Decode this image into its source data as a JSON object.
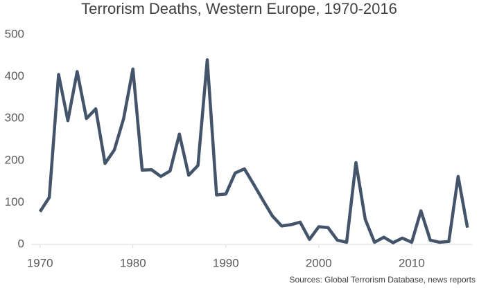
{
  "chart_data": {
    "type": "line",
    "title": "Terrorism Deaths, Western Europe, 1970-2016",
    "source": "Sources: Global Terrorism Database, news reports",
    "x": [
      1970,
      1971,
      1972,
      1973,
      1974,
      1975,
      1976,
      1977,
      1978,
      1979,
      1980,
      1981,
      1982,
      1983,
      1984,
      1985,
      1986,
      1987,
      1988,
      1989,
      1990,
      1991,
      1992,
      1993,
      1994,
      1995,
      1996,
      1997,
      1998,
      1999,
      2000,
      2001,
      2002,
      2003,
      2004,
      2005,
      2006,
      2007,
      2008,
      2009,
      2010,
      2011,
      2012,
      2013,
      2014,
      2015,
      2016
    ],
    "series": [
      {
        "name": "Deaths",
        "color": "#44546a",
        "values": [
          78,
          112,
          405,
          295,
          412,
          300,
          323,
          193,
          225,
          300,
          418,
          177,
          178,
          162,
          175,
          263,
          165,
          188,
          440,
          118,
          120,
          170,
          180,
          143,
          105,
          68,
          44,
          47,
          53,
          12,
          42,
          40,
          10,
          5,
          195,
          60,
          5,
          17,
          4,
          15,
          5,
          80,
          10,
          5,
          7,
          162,
          40
        ]
      }
    ],
    "xlim": [
      1969.5,
      2016.5
    ],
    "xticks": [
      1970,
      1980,
      1990,
      2000,
      2010
    ],
    "ylim": [
      0,
      500
    ],
    "yticks": [
      0,
      100,
      200,
      300,
      400,
      500
    ],
    "grid": false
  }
}
